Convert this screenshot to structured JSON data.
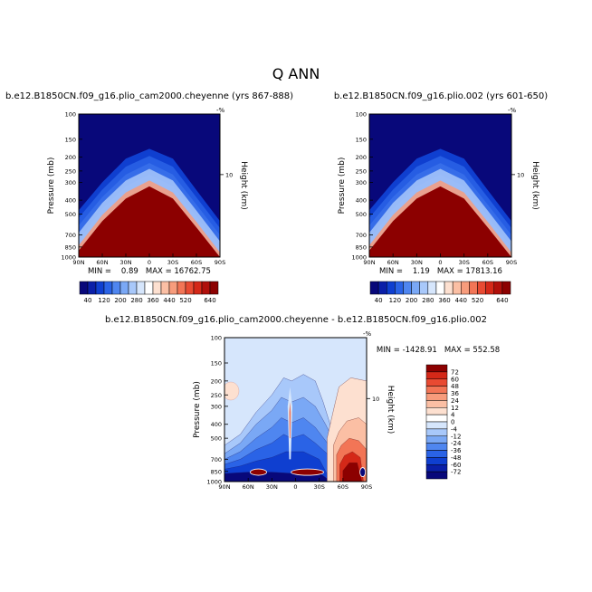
{
  "page_title": "Q ANN",
  "pressure_axis": {
    "label": "Pressure (mb)",
    "range": [
      1000,
      100
    ],
    "ticks": [
      100,
      150,
      200,
      250,
      300,
      400,
      500,
      700,
      850,
      1000
    ],
    "scale": "log"
  },
  "height_axis": {
    "label": "Height (km)",
    "ticks": [
      10
    ],
    "top_marker": "-%"
  },
  "lat_axis": {
    "range": [
      90,
      -90
    ],
    "ticks": [
      90,
      60,
      30,
      0,
      -30,
      -60,
      -90
    ],
    "tick_labels": [
      "90N",
      "60N",
      "30N",
      "0",
      "30S",
      "60S",
      "90S"
    ]
  },
  "chart_data": [
    {
      "type": "heatmap",
      "title": "b.e12.B1850CN.f09_g16.plio_cam2000.cheyenne (yrs 867-888)",
      "stats": "MIN =    0.89   MAX = 16762.75",
      "min": 0.89,
      "max": 16762.75,
      "colorbar": {
        "orientation": "horizontal",
        "levels": [
          40,
          80,
          120,
          160,
          200,
          240,
          280,
          320,
          360,
          400,
          440,
          480,
          520,
          560,
          600,
          640
        ],
        "tick_labels": [
          "40",
          "120",
          "200",
          "280",
          "360",
          "440",
          "520",
          "640"
        ],
        "colors": [
          "#08087a",
          "#0a1fa8",
          "#0f3fd0",
          "#2a63e6",
          "#4f86f0",
          "#7aa8f5",
          "#a8c8fa",
          "#d6e6fc",
          "#ffffff",
          "#fde0d0",
          "#fbbfa4",
          "#f79c7c",
          "#f27556",
          "#e84a32",
          "#d42818",
          "#b00f0a",
          "#8c0000"
        ]
      },
      "contour_boundary_p": [
        {
          "lat": 90,
          "p": [
            900,
            760,
            600,
            470
          ]
        },
        {
          "lat": 60,
          "p": [
            560,
            460,
            380,
            300
          ]
        },
        {
          "lat": 30,
          "p": [
            390,
            320,
            265,
            205
          ]
        },
        {
          "lat": 0,
          "p": [
            320,
            265,
            220,
            175
          ]
        },
        {
          "lat": -30,
          "p": [
            390,
            320,
            265,
            205
          ]
        },
        {
          "lat": -60,
          "p": [
            620,
            520,
            430,
            340
          ]
        },
        {
          "lat": -90,
          "p": [
            1000,
            860,
            700,
            560
          ]
        }
      ]
    },
    {
      "type": "heatmap",
      "title": "b.e12.B1850CN.f09_g16.plio.002 (yrs 601-650)",
      "stats": "MIN =    1.19   MAX = 17813.16",
      "min": 1.19,
      "max": 17813.16,
      "colorbar": {
        "orientation": "horizontal",
        "levels": [
          40,
          80,
          120,
          160,
          200,
          240,
          280,
          320,
          360,
          400,
          440,
          480,
          520,
          560,
          600,
          640
        ],
        "tick_labels": [
          "40",
          "120",
          "200",
          "280",
          "360",
          "440",
          "520",
          "640"
        ],
        "colors": [
          "#08087a",
          "#0a1fa8",
          "#0f3fd0",
          "#2a63e6",
          "#4f86f0",
          "#7aa8f5",
          "#a8c8fa",
          "#d6e6fc",
          "#ffffff",
          "#fde0d0",
          "#fbbfa4",
          "#f79c7c",
          "#f27556",
          "#e84a32",
          "#d42818",
          "#b00f0a",
          "#8c0000"
        ]
      },
      "contour_boundary_p": [
        {
          "lat": 90,
          "p": [
            900,
            760,
            600,
            470
          ]
        },
        {
          "lat": 60,
          "p": [
            560,
            460,
            380,
            300
          ]
        },
        {
          "lat": 30,
          "p": [
            390,
            320,
            265,
            205
          ]
        },
        {
          "lat": 0,
          "p": [
            320,
            265,
            220,
            175
          ]
        },
        {
          "lat": -30,
          "p": [
            390,
            320,
            265,
            205
          ]
        },
        {
          "lat": -60,
          "p": [
            620,
            520,
            430,
            340
          ]
        },
        {
          "lat": -90,
          "p": [
            1000,
            860,
            700,
            560
          ]
        }
      ]
    },
    {
      "type": "heatmap",
      "title": "b.e12.B1850CN.f09_g16.plio_cam2000.cheyenne - b.e12.B1850CN.f09_g16.plio.002",
      "stats": "MIN = -1428.91   MAX = 552.58",
      "min": -1428.91,
      "max": 552.58,
      "colorbar": {
        "orientation": "vertical",
        "levels": [
          -72,
          -60,
          -48,
          -36,
          -24,
          -12,
          -4,
          0,
          4,
          12,
          24,
          36,
          48,
          60,
          72
        ],
        "tick_labels": [
          "72",
          "60",
          "48",
          "36",
          "24",
          "12",
          "4",
          "0",
          "-4",
          "-12",
          "-24",
          "-36",
          "-48",
          "-60",
          "-72"
        ],
        "colors": [
          "#08087a",
          "#0a1fa8",
          "#0f3fd0",
          "#2a63e6",
          "#4f86f0",
          "#7aa8f5",
          "#a8c8fa",
          "#d6e6fc",
          "#ffffff",
          "#fde0d0",
          "#fbbfa4",
          "#f79c7c",
          "#f27556",
          "#e84a32",
          "#d42818",
          "#8c0000"
        ]
      }
    }
  ]
}
